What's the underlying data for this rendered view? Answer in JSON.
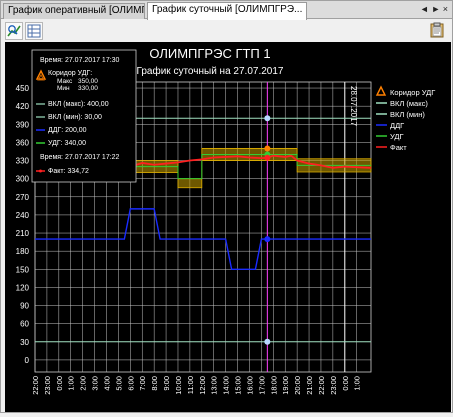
{
  "tabs": [
    {
      "label": "График оперативный [ОЛИМП..."
    },
    {
      "label": "График суточный [ОЛИМПГРЭ...",
      "close": "×"
    }
  ],
  "tab_controls": "◄ ► ×",
  "chart_data": {
    "type": "line",
    "title": "ОЛИМПГРЭС ГТП 1",
    "subtitle": "График суточный на 27.07.2017",
    "yticks": [
      450,
      420,
      390,
      360,
      330,
      300,
      270,
      240,
      210,
      180,
      150,
      120,
      90,
      60,
      30,
      0
    ],
    "ylim": [
      -20,
      460
    ],
    "xtick_labels": [
      "22:00",
      "23:00",
      "0:00",
      "1:00",
      "2:00",
      "3:00",
      "4:00",
      "5:00",
      "6:00",
      "7:00",
      "8:00",
      "9:00",
      "10:00",
      "11:00",
      "12:00",
      "13:00",
      "14:00",
      "15:00",
      "16:00",
      "17:00",
      "18:00",
      "19:00",
      "20:00",
      "21:00",
      "22:00",
      "23:00",
      "0:00",
      "1:00"
    ],
    "date_marker": {
      "label": "28.07.2017",
      "x_hour": 24
    },
    "cursor_hour": 17.5,
    "series": [
      {
        "name": "ВКЛ (макс)",
        "color": "#9fe0c0",
        "x": [
          -2,
          26.2
        ],
        "y": [
          400,
          400
        ]
      },
      {
        "name": "ВКЛ (мин)",
        "color": "#9fe0c0",
        "x": [
          -2,
          26.2
        ],
        "y": [
          30,
          30
        ]
      },
      {
        "name": "ДДГ",
        "color": "#1a2cff",
        "x": [
          -2,
          5.5,
          6,
          8,
          8.5,
          10.5,
          11,
          14,
          14.5,
          16.5,
          17,
          26.2
        ],
        "y": [
          200,
          200,
          250,
          250,
          200,
          200,
          200,
          200,
          150,
          150,
          200,
          200
        ]
      },
      {
        "name": "УДГ",
        "color": "#33cc33",
        "x": [
          6,
          10,
          10,
          12,
          12,
          20,
          20,
          26.2
        ],
        "y": [
          320,
          320,
          300,
          300,
          340,
          340,
          322,
          322
        ]
      },
      {
        "name": "Факт",
        "color": "#ff2020",
        "x": [
          6,
          7,
          8,
          9,
          10,
          11,
          12,
          13,
          14,
          15,
          16,
          17,
          17.5,
          18,
          19,
          19.5,
          20,
          21,
          22,
          23,
          24,
          25,
          26.2
        ],
        "y": [
          320,
          326,
          323,
          325,
          327,
          330,
          332,
          335,
          336,
          337,
          335,
          334,
          334.72,
          338,
          336,
          338,
          330,
          325,
          322,
          318,
          320,
          319,
          318
        ]
      }
    ],
    "corridor": {
      "name": "Коридор УДГ",
      "color": "#c8a000",
      "x": [
        6,
        10,
        10,
        12,
        12,
        20,
        20,
        26.2
      ],
      "max": [
        330,
        330,
        300,
        300,
        350,
        350,
        333,
        333
      ],
      "min": [
        310,
        310,
        285,
        285,
        330,
        330,
        311,
        311
      ]
    },
    "cursor_points": [
      {
        "y": 400,
        "color": "#b8d8ff"
      },
      {
        "y": 350,
        "color": "#ff8000"
      },
      {
        "y": 340,
        "color": "#33cc33"
      },
      {
        "y": 334.72,
        "color": "#ff2020"
      },
      {
        "y": 200,
        "color": "#1a2cff"
      },
      {
        "y": 30,
        "color": "#b8d8ff"
      }
    ],
    "legend": [
      {
        "label": "Коридор УДГ",
        "color": "#ff8000",
        "kind": "corridor"
      },
      {
        "label": "ВКЛ (макс)",
        "color": "#9fe0c0",
        "kind": "line"
      },
      {
        "label": "ВКЛ (мин)",
        "color": "#9fe0c0",
        "kind": "line"
      },
      {
        "label": "ДДГ",
        "color": "#1a2cff",
        "kind": "line"
      },
      {
        "label": "УДГ",
        "color": "#33cc33",
        "kind": "line"
      },
      {
        "label": "Факт",
        "color": "#ff2020",
        "kind": "line"
      }
    ]
  },
  "tooltip": {
    "time_label": "Время: 27.07.2017 17:30",
    "corridor_label": "Коридор УДГ:",
    "max_label": "Макс",
    "max_value": "350,00",
    "min_label": "Мин",
    "min_value": "330,00",
    "vkl_max": "ВКЛ (макс): 400,00",
    "vkl_min": "ВКЛ (мин): 30,00",
    "ddg": "ДДГ: 200,00",
    "udg": "УДГ: 340,00",
    "time2_label": "Время: 27.07.2017 17:22",
    "fact": "Факт: 334,72"
  }
}
